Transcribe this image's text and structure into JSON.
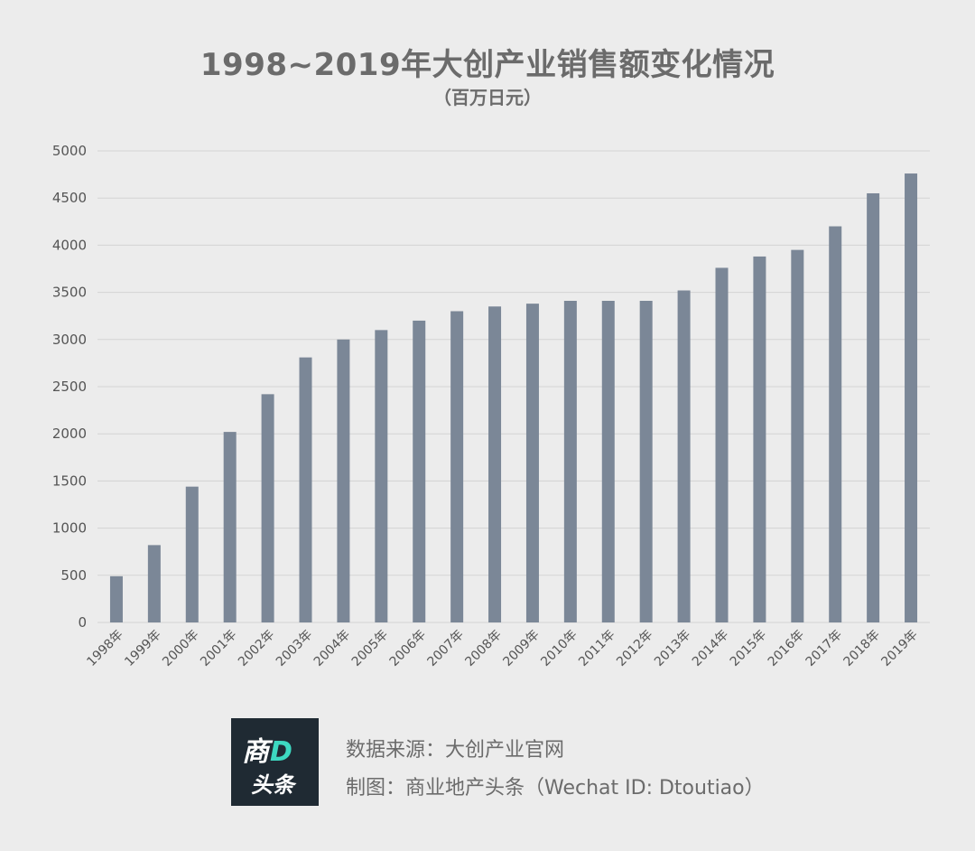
{
  "chart_data": {
    "type": "bar",
    "title": "1998~2019年大创产业销售额变化情况",
    "subtitle": "（百万日元）",
    "xlabel": "",
    "ylabel": "",
    "ylim": [
      0,
      5000
    ],
    "yticks": [
      0,
      500,
      1000,
      1500,
      2000,
      2500,
      3000,
      3500,
      4000,
      4500,
      5000
    ],
    "categories": [
      "1998年",
      "1999年",
      "2000年",
      "2001年",
      "2002年",
      "2003年",
      "2004年",
      "2005年",
      "2006年",
      "2007年",
      "2008年",
      "2009年",
      "2010年",
      "2011年",
      "2012年",
      "2013年",
      "2014年",
      "2015年",
      "2016年",
      "2017年",
      "2018年",
      "2019年"
    ],
    "values": [
      490,
      820,
      1440,
      2020,
      2420,
      2810,
      3000,
      3100,
      3200,
      3300,
      3350,
      3380,
      3410,
      3410,
      3410,
      3520,
      3760,
      3880,
      3950,
      4200,
      4550,
      4760
    ],
    "bar_color": "#7b8797",
    "grid_color": "#d3d3d3",
    "grid": true
  },
  "logo": {
    "top": "商",
    "accent": "D",
    "bottom": "头条"
  },
  "footer": {
    "source": "数据来源：大创产业官网",
    "credit": "制图：商业地产头条（Wechat ID: Dtoutiao）"
  }
}
